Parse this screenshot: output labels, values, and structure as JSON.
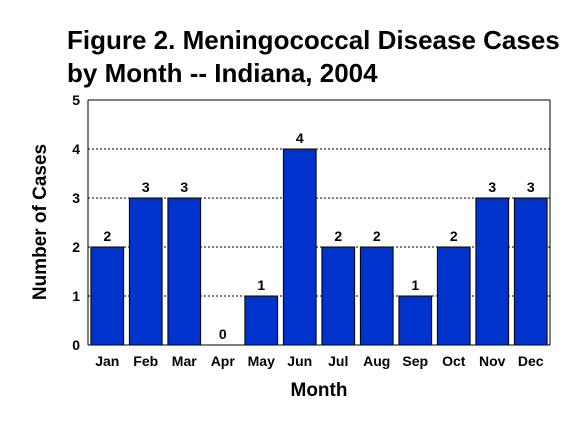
{
  "chart_data": {
    "type": "bar",
    "title_lines": [
      "Figure 2. Meningococcal Disease Cases",
      "by Month -- Indiana, 2004"
    ],
    "xlabel": "Month",
    "ylabel": "Number of Cases",
    "categories": [
      "Jan",
      "Feb",
      "Mar",
      "Apr",
      "May",
      "Jun",
      "Jul",
      "Aug",
      "Sep",
      "Oct",
      "Nov",
      "Dec"
    ],
    "values": [
      2,
      3,
      3,
      0,
      1,
      4,
      2,
      2,
      1,
      2,
      3,
      3
    ],
    "data_labels": [
      "2",
      "3",
      "3",
      "0",
      "1",
      "4",
      "2",
      "2",
      "1",
      "2",
      "3",
      "3"
    ],
    "yticks": [
      "0",
      "1",
      "2",
      "3",
      "4",
      "5"
    ],
    "ylim": [
      0,
      5
    ],
    "grid": "horizontal dashed",
    "bar_color": "#0033cc"
  }
}
